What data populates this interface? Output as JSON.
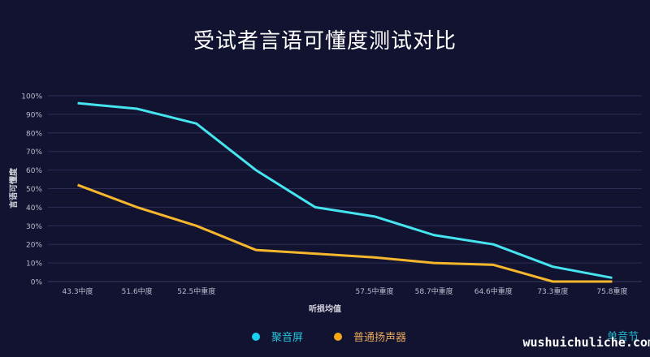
{
  "header": {
    "title": "受试者言语可懂度测试对比"
  },
  "chart_data": {
    "type": "line",
    "title": "受试者言语可懂度测试对比",
    "xlabel": "听损均值",
    "ylabel": "言语可懂度",
    "categories": [
      "43.3中度",
      "51.6中度",
      "52.5中重度",
      "",
      "",
      "57.5中重度",
      "58.7中重度",
      "64.6中重度",
      "73.3重度",
      "75.8重度"
    ],
    "series": [
      {
        "name": "聚音屏",
        "color": "#45e4ee",
        "values": [
          96,
          93,
          85,
          60,
          40,
          35,
          25,
          20,
          8,
          2
        ]
      },
      {
        "name": "普通扬声器",
        "color": "#f6b72d",
        "values": [
          52,
          40,
          30,
          17,
          15,
          13,
          10,
          9,
          0,
          0
        ]
      }
    ],
    "yticks": [
      "0%",
      "10%",
      "20%",
      "30%",
      "40%",
      "50%",
      "60%",
      "70%",
      "80%",
      "90%",
      "100%"
    ],
    "ylim": [
      0,
      100
    ],
    "grid": true,
    "legend_position": "bottom"
  },
  "legend": {
    "items": [
      {
        "label": "聚音屏",
        "color": "#1ad0f0",
        "text_color": "#27c3da"
      },
      {
        "label": "普通扬声器",
        "color": "#f5a614",
        "text_color": "#e8a85a"
      }
    ]
  },
  "watermark": {
    "cn": "单音节",
    "url": "wushuichuliche.com"
  }
}
